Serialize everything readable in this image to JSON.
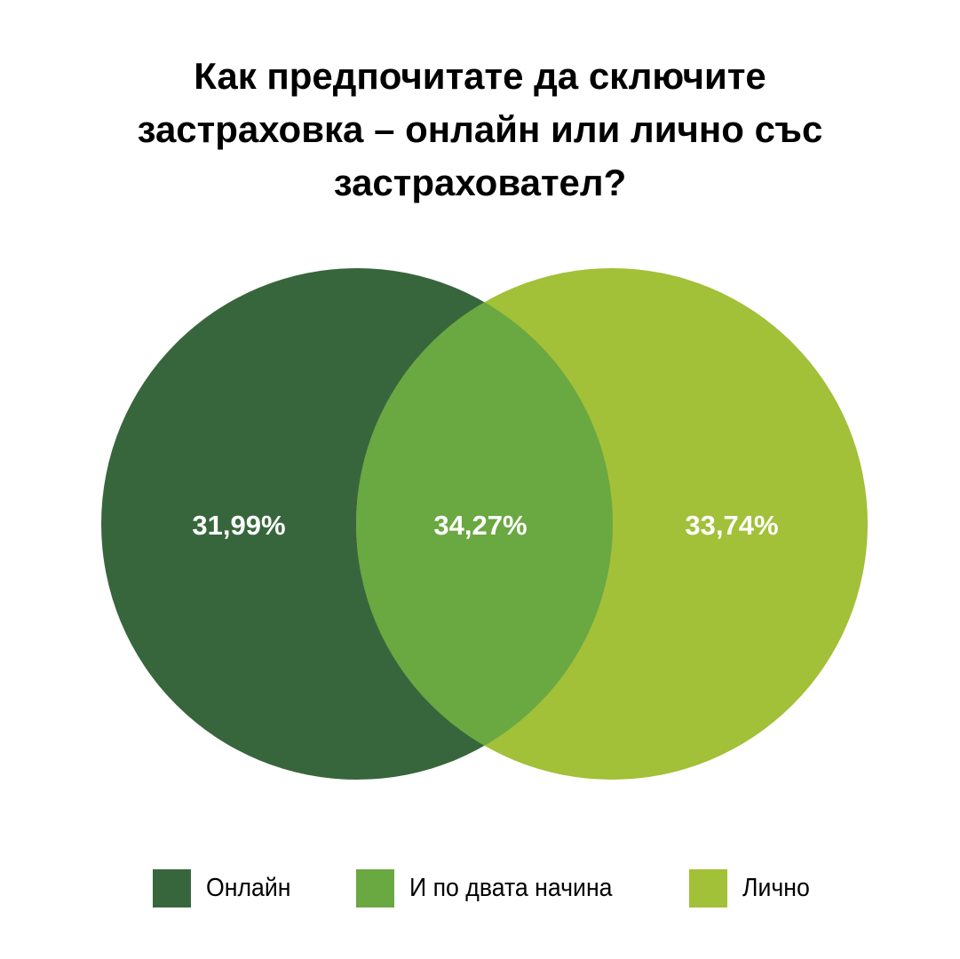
{
  "chart_data": {
    "type": "venn",
    "title_lines": [
      "Как предпочитате да сключите",
      "застраховка – онлайн или лично със",
      "застраховател?"
    ],
    "sets": [
      {
        "name": "Онлайн",
        "value_label": "31,99%",
        "value": 31.99,
        "color": "#38663c"
      },
      {
        "name": "И по двата начина",
        "value_label": "34,27%",
        "value": 34.27,
        "color": "#6aa842"
      },
      {
        "name": "Лично",
        "value_label": "33,74%",
        "value": 33.74,
        "color": "#a2c038"
      }
    ],
    "legend_position": "bottom"
  },
  "colors": {
    "online": "#38663c",
    "both": "#6aa842",
    "in_person": "#a2c038",
    "label_text": "#ffffff"
  }
}
